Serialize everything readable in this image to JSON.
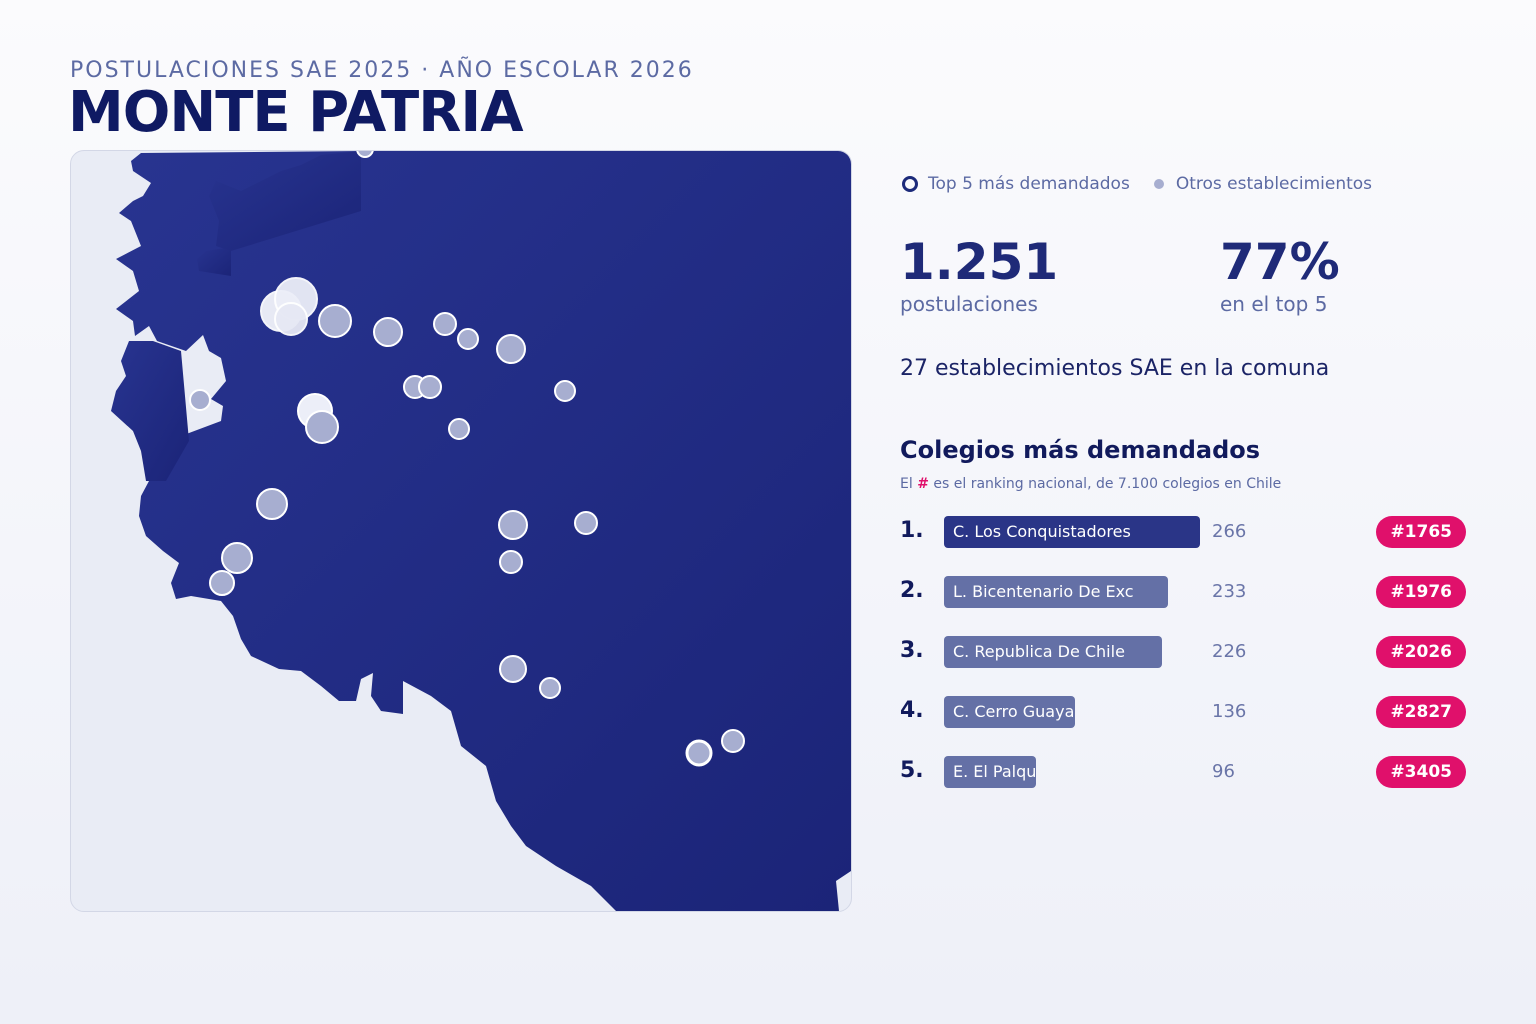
{
  "header": {
    "kicker": "POSTULACIONES SAE 2025 · AÑO ESCOLAR 2026",
    "title": "MONTE PATRIA"
  },
  "legend": {
    "top5": "Top 5 más demandados",
    "others": "Otros establecimientos"
  },
  "stats": {
    "applications": {
      "value": "1.251",
      "label": "postulaciones"
    },
    "top5_share": {
      "value": "77%",
      "label": "en el top 5"
    },
    "schools_line": "27 establecimientos SAE en la comuna"
  },
  "ranking": {
    "title": "Colegios más demandados",
    "note_prefix": "El",
    "note_hash": "#",
    "note_suffix": "es el ranking nacional, de 7.100 colegios en Chile",
    "max_value": 266,
    "items": [
      {
        "pos": "1.",
        "name": "C. Los Conquistadores",
        "value": 266,
        "value_label": "266",
        "badge": "#1765"
      },
      {
        "pos": "2.",
        "name": "L. Bicentenario De Exc",
        "value": 233,
        "value_label": "233",
        "badge": "#1976"
      },
      {
        "pos": "3.",
        "name": "C. Republica De Chile",
        "value": 226,
        "value_label": "226",
        "badge": "#2026"
      },
      {
        "pos": "4.",
        "name": "C. Cerro Guayaqui",
        "value": 136,
        "value_label": "136",
        "badge": "#2827"
      },
      {
        "pos": "5.",
        "name": "E. El Palqui",
        "value": 96,
        "value_label": "96",
        "badge": "#3405"
      }
    ]
  },
  "colors": {
    "region_fill": "#232e86",
    "background": "#e9ecf5",
    "other_marker": "#a7aed0",
    "top_marker": "#f2f3fa",
    "badge": "#e0106b",
    "bar_top": "#2a3587",
    "bar_other": "#6470a6"
  }
}
